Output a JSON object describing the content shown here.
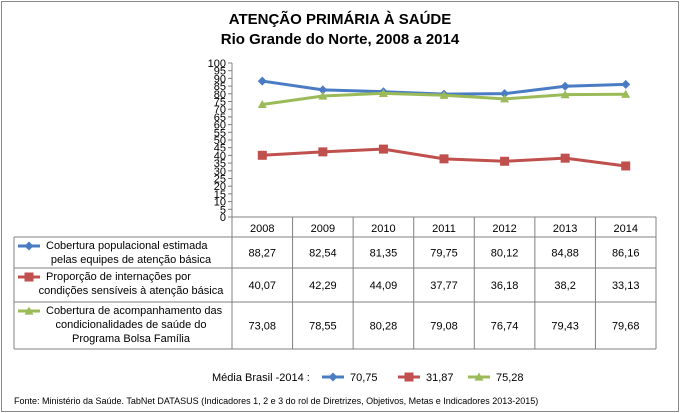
{
  "chart_data": {
    "type": "line",
    "title": [
      "ATENÇÃO PRIMÁRIA À SAÚDE",
      "Rio Grande do Norte, 2008 a 2014"
    ],
    "categories": [
      "2008",
      "2009",
      "2010",
      "2011",
      "2012",
      "2013",
      "2014"
    ],
    "ylim": [
      0,
      100
    ],
    "yticks": [
      0,
      5,
      10,
      15,
      20,
      25,
      30,
      35,
      40,
      45,
      50,
      55,
      60,
      65,
      70,
      75,
      80,
      85,
      90,
      95,
      100
    ],
    "grid": false,
    "series": [
      {
        "name_lines": [
          "Cobertura populacional estimada",
          "pelas equipes de atenção básica"
        ],
        "values": [
          88.27,
          82.54,
          81.35,
          79.75,
          80.12,
          84.88,
          86.16
        ],
        "labels": [
          "88,27",
          "82,54",
          "81,35",
          "79,75",
          "80,12",
          "84,88",
          "86,16"
        ],
        "color": "#4a7cc4",
        "marker": "diamond"
      },
      {
        "name_lines": [
          "Proporção de internações por",
          "condições sensíveis à atenção básica"
        ],
        "values": [
          40.07,
          42.29,
          44.09,
          37.77,
          36.18,
          38.2,
          33.13
        ],
        "labels": [
          "40,07",
          "42,29",
          "44,09",
          "37,77",
          "36,18",
          "38,2",
          "33,13"
        ],
        "color": "#c0504d",
        "marker": "square"
      },
      {
        "name_lines": [
          "Cobertura de acompanhamento das",
          "condicionalidades de saúde do",
          "Programa Bolsa Família"
        ],
        "values": [
          73.08,
          78.55,
          80.28,
          79.08,
          76.74,
          79.43,
          79.68
        ],
        "labels": [
          "73,08",
          "78,55",
          "80,28",
          "79,08",
          "76,74",
          "79,43",
          "79,68"
        ],
        "color": "#9bbb59",
        "marker": "triangle"
      }
    ],
    "legend": {
      "label": "Média Brasil -2014 :",
      "entries": [
        {
          "marker": "diamond",
          "color": "#4a7cc4",
          "text": "70,75"
        },
        {
          "marker": "square",
          "color": "#c0504d",
          "text": "31,87"
        },
        {
          "marker": "triangle",
          "color": "#9bbb59",
          "text": "75,28"
        }
      ]
    },
    "source": "Fonte: Ministério da Saúde. TabNet DATASUS (Indicadores 1, 2 e 3 do rol de Diretrizes, Objetivos, Metas e Indicadores 2013-2015)"
  }
}
